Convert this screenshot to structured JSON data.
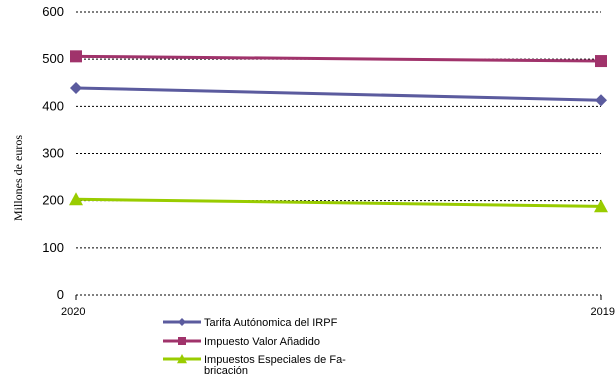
{
  "chart_data": {
    "type": "line",
    "x": [
      "2020",
      "2019"
    ],
    "ylabel": "Millones de euros",
    "xlabel": "",
    "ylim": [
      0,
      600
    ],
    "yticks": [
      0,
      100,
      200,
      300,
      400,
      500,
      600
    ],
    "grid": true,
    "legend_position": "bottom",
    "series": [
      {
        "name": "Tarifa Autónomica del IRPF",
        "values": [
          439,
          413
        ],
        "color": "#5b5b9e",
        "marker": "diamond"
      },
      {
        "name": "Impuesto Valor Añadido",
        "values": [
          506,
          496
        ],
        "color": "#a0336b",
        "marker": "square"
      },
      {
        "name": "Impuestos Especiales de Fabricación",
        "legend_lines": [
          "Impuestos Especiales de Fa-",
          "bricación"
        ],
        "values": [
          203,
          188
        ],
        "color": "#99cc00",
        "marker": "triangle"
      }
    ]
  }
}
